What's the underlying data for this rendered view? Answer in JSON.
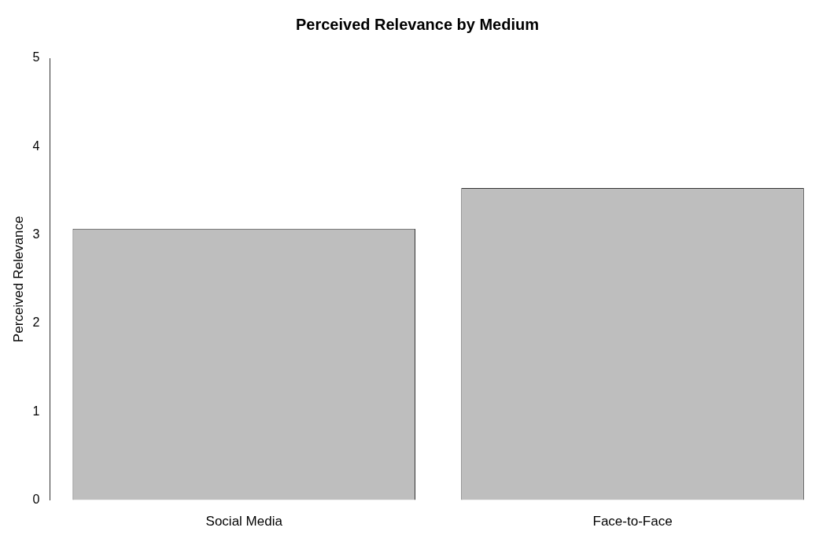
{
  "chart_data": {
    "type": "bar",
    "title": "Perceived Relevance by Medium",
    "ylabel": "Perceived Relevance",
    "categories": [
      "Social Media",
      "Face-to-Face"
    ],
    "values": [
      3.07,
      3.53
    ],
    "color": "#bebebe",
    "ylim": [
      0,
      5
    ],
    "yticks": [
      0,
      1,
      2,
      3,
      4,
      5
    ],
    "grid": false,
    "legend": false
  }
}
